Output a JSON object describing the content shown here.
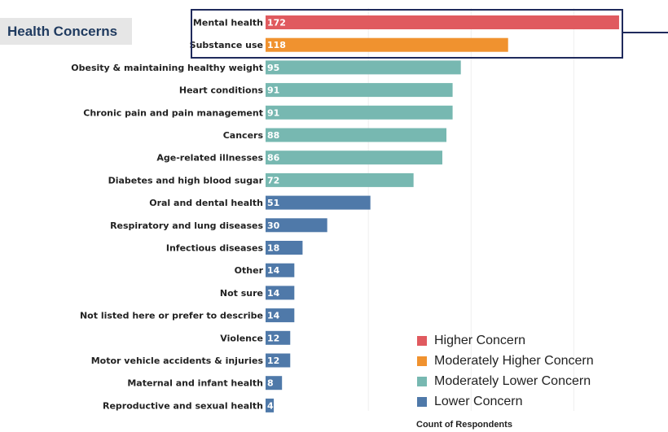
{
  "title": "Health Concerns",
  "chart_data": {
    "type": "bar",
    "orientation": "horizontal",
    "categories": [
      "Mental health",
      "Substance use",
      "Obesity & maintaining healthy weight",
      "Heart conditions",
      "Chronic pain and pain management",
      "Cancers",
      "Age-related illnesses",
      "Diabetes and high blood sugar",
      "Oral and dental health",
      "Respiratory and lung diseases",
      "Infectious diseases",
      "Other",
      "Not sure",
      "Not listed here or prefer to describe",
      "Violence",
      "Motor vehicle accidents &  injuries",
      "Maternal and infant health",
      "Reproductive and sexual health"
    ],
    "values": [
      172,
      118,
      95,
      91,
      91,
      88,
      86,
      72,
      51,
      30,
      18,
      14,
      14,
      14,
      12,
      12,
      8,
      4
    ],
    "concern_level": [
      "Higher Concern",
      "Moderately Higher Concern",
      "Moderately Lower Concern",
      "Moderately Lower Concern",
      "Moderately Lower Concern",
      "Moderately Lower Concern",
      "Moderately Lower Concern",
      "Moderately Lower Concern",
      "Lower Concern",
      "Lower Concern",
      "Lower Concern",
      "Lower Concern",
      "Lower Concern",
      "Lower Concern",
      "Lower Concern",
      "Lower Concern",
      "Lower Concern",
      "Lower Concern"
    ],
    "xlabel": "Count of Respondents",
    "xlim": [
      0,
      175
    ],
    "grid": true,
    "legend_position": "bottom-right",
    "legend": [
      {
        "label": "Higher Concern",
        "color": "#e05a5f"
      },
      {
        "label": "Moderately Higher Concern",
        "color": "#f0922f"
      },
      {
        "label": "Moderately Lower Concern",
        "color": "#77b8b1"
      },
      {
        "label": "Lower Concern",
        "color": "#4f79a9"
      }
    ],
    "highlight_box_color": "#1f2a5c",
    "highlighted_categories": [
      "Mental health",
      "Substance use"
    ]
  }
}
